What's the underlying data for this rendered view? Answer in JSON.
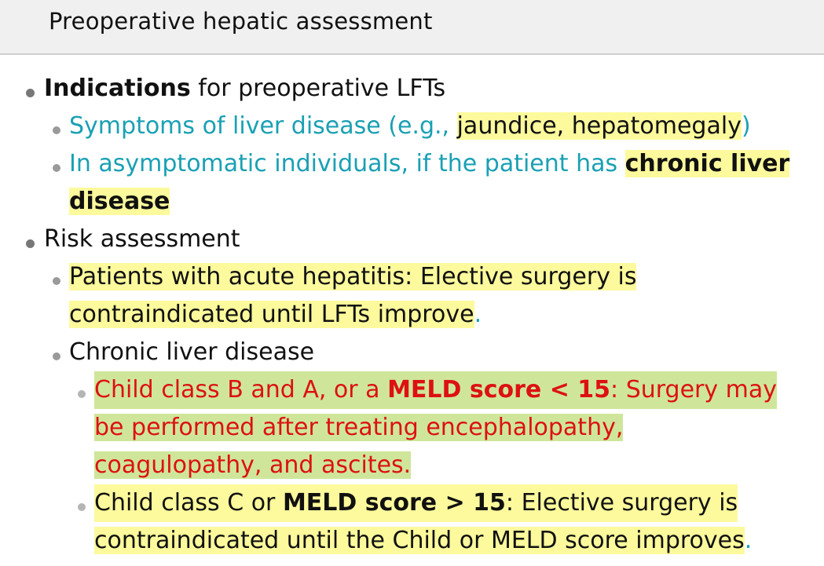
{
  "header": {
    "title": "Preoperative hepatic assessment"
  },
  "indications": {
    "label_bold": "Indications",
    "label_rest": " for preoperative LFTs",
    "symptoms": {
      "prefix": "Symptoms of liver disease (e.g., ",
      "highlighted": "jaundice, hepatomegaly",
      "suffix": ")"
    },
    "asymptomatic": {
      "prefix": "In asymptomatic individuals, if the patient has ",
      "bold_line1": "chronic liver",
      "bold_line2": "disease"
    }
  },
  "risk": {
    "label": "Risk assessment",
    "acute": {
      "line1": "Patients with acute hepatitis: Elective surgery is",
      "line2": "contraindicated until LFTs improve",
      "period": "."
    },
    "chronic": {
      "label": "Chronic liver disease",
      "class_ab": {
        "part1": "Child class B and A, or a ",
        "bold": "MELD score",
        "part2": " < 15",
        "part3": ": Surgery may",
        "line2": "be performed after treating encephalopathy,",
        "line3": "coagulopathy, and ascites."
      },
      "class_c": {
        "part1": "Child class C or ",
        "bold": "MELD score",
        "part2": " > 15",
        "part3": ": Elective surgery is",
        "line2": "contraindicated until the Child or MELD score improves",
        "period": "."
      }
    }
  }
}
